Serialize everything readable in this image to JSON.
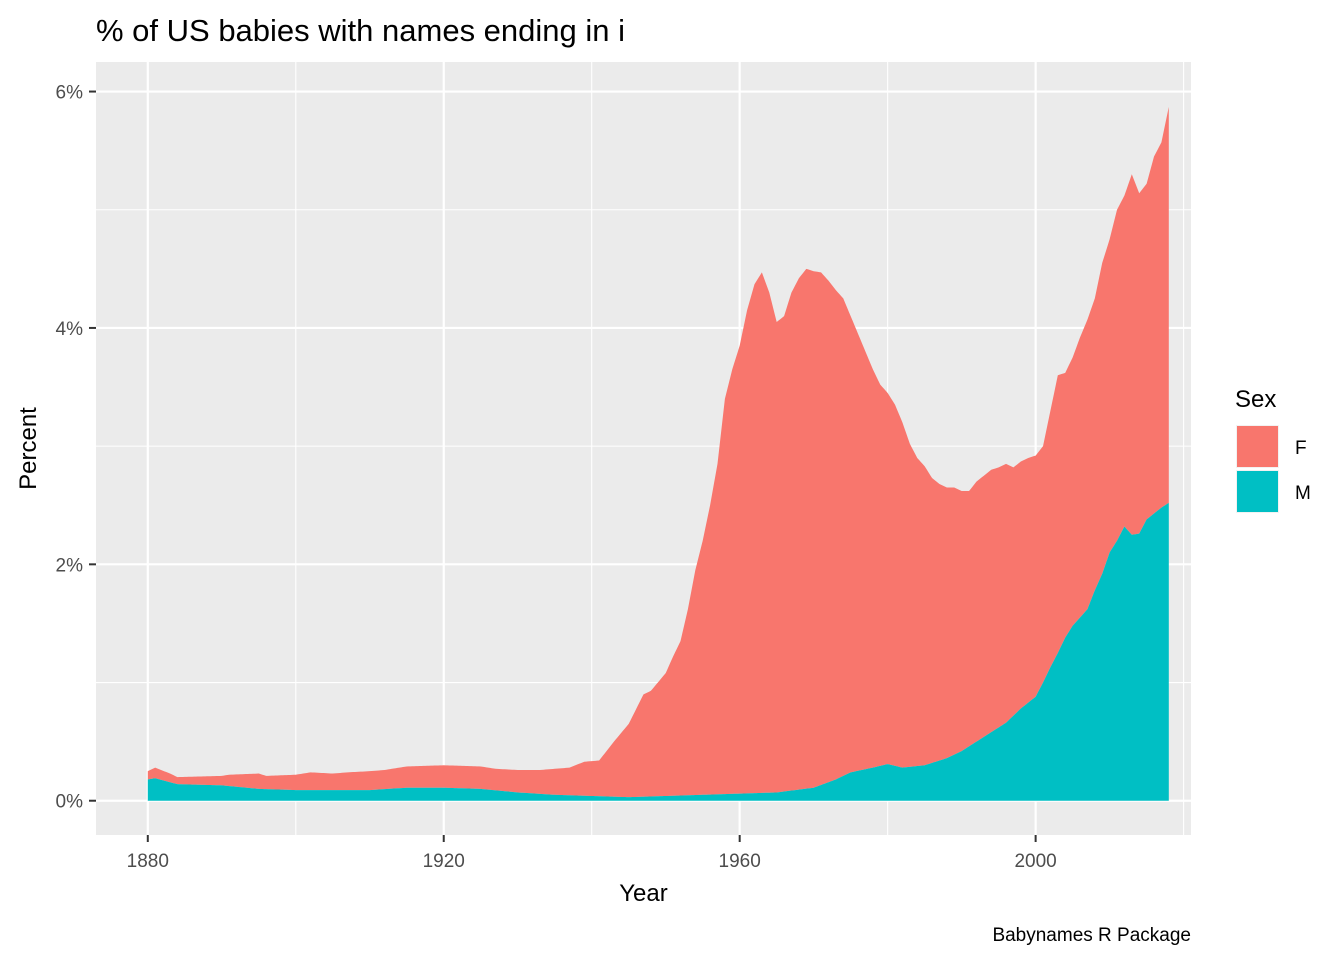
{
  "chart_data": {
    "type": "area",
    "stacked": true,
    "title": "% of US babies with names ending in i",
    "xlabel": "Year",
    "ylabel": "Percent",
    "caption": "Babynames R Package",
    "xlim": [
      1873,
      2021
    ],
    "ylim": [
      -0.0029,
      0.0625
    ],
    "x_ticks": [
      1880,
      1920,
      1960,
      2000
    ],
    "x_tick_labels": [
      "1880",
      "1920",
      "1960",
      "2000"
    ],
    "y_ticks": [
      0,
      0.02,
      0.04,
      0.06
    ],
    "y_tick_labels": [
      "0%",
      "2%",
      "4%",
      "6%"
    ],
    "grid": true,
    "legend": {
      "title": "Sex",
      "position": "right"
    },
    "series": [
      {
        "name": "F",
        "color": "#F8766D",
        "points": [
          [
            1880,
            0.0025
          ],
          [
            1881,
            0.0028
          ],
          [
            1883,
            0.0023
          ],
          [
            1884,
            0.002
          ],
          [
            1890,
            0.0021
          ],
          [
            1891,
            0.0022
          ],
          [
            1895,
            0.0023
          ],
          [
            1896,
            0.0021
          ],
          [
            1900,
            0.0022
          ],
          [
            1902,
            0.0024
          ],
          [
            1905,
            0.0023
          ],
          [
            1907,
            0.0024
          ],
          [
            1910,
            0.0025
          ],
          [
            1912,
            0.0026
          ],
          [
            1915,
            0.0029
          ],
          [
            1920,
            0.003
          ],
          [
            1925,
            0.0029
          ],
          [
            1927,
            0.0027
          ],
          [
            1930,
            0.0026
          ],
          [
            1933,
            0.0026
          ],
          [
            1935,
            0.0027
          ],
          [
            1937,
            0.0028
          ],
          [
            1939,
            0.0033
          ],
          [
            1941,
            0.0034
          ],
          [
            1943,
            0.005
          ],
          [
            1945,
            0.0065
          ],
          [
            1947,
            0.009
          ],
          [
            1948,
            0.0093
          ],
          [
            1950,
            0.0108
          ],
          [
            1951,
            0.0122
          ],
          [
            1952,
            0.0135
          ],
          [
            1953,
            0.0162
          ],
          [
            1954,
            0.0195
          ],
          [
            1955,
            0.022
          ],
          [
            1956,
            0.025
          ],
          [
            1957,
            0.0285
          ],
          [
            1958,
            0.034
          ],
          [
            1959,
            0.0365
          ],
          [
            1960,
            0.0385
          ],
          [
            1961,
            0.0415
          ],
          [
            1962,
            0.0437
          ],
          [
            1963,
            0.0447
          ],
          [
            1964,
            0.043
          ],
          [
            1965,
            0.0405
          ],
          [
            1966,
            0.041
          ],
          [
            1967,
            0.043
          ],
          [
            1968,
            0.0442
          ],
          [
            1969,
            0.045
          ],
          [
            1970,
            0.0448
          ],
          [
            1971,
            0.0447
          ],
          [
            1972,
            0.044
          ],
          [
            1973,
            0.0432
          ],
          [
            1974,
            0.0425
          ],
          [
            1975,
            0.041
          ],
          [
            1976,
            0.0395
          ],
          [
            1977,
            0.038
          ],
          [
            1978,
            0.0365
          ],
          [
            1979,
            0.0352
          ],
          [
            1980,
            0.0345
          ],
          [
            1981,
            0.0335
          ],
          [
            1982,
            0.032
          ],
          [
            1983,
            0.0302
          ],
          [
            1984,
            0.029
          ],
          [
            1985,
            0.0283
          ],
          [
            1986,
            0.0273
          ],
          [
            1987,
            0.0268
          ],
          [
            1988,
            0.0265
          ],
          [
            1989,
            0.0265
          ],
          [
            1990,
            0.0262
          ],
          [
            1991,
            0.0262
          ],
          [
            1992,
            0.027
          ],
          [
            1993,
            0.0275
          ],
          [
            1994,
            0.028
          ],
          [
            1995,
            0.0282
          ],
          [
            1996,
            0.0285
          ],
          [
            1997,
            0.0282
          ],
          [
            1998,
            0.0287
          ],
          [
            1999,
            0.029
          ],
          [
            2000,
            0.0292
          ],
          [
            2001,
            0.03
          ],
          [
            2002,
            0.033
          ],
          [
            2003,
            0.036
          ],
          [
            2004,
            0.0362
          ],
          [
            2005,
            0.0375
          ],
          [
            2006,
            0.0392
          ],
          [
            2007,
            0.0407
          ],
          [
            2008,
            0.0425
          ],
          [
            2009,
            0.0455
          ],
          [
            2010,
            0.0475
          ],
          [
            2011,
            0.05
          ],
          [
            2012,
            0.0512
          ],
          [
            2013,
            0.053
          ],
          [
            2014,
            0.0514
          ],
          [
            2015,
            0.0522
          ],
          [
            2016,
            0.0545
          ],
          [
            2017,
            0.0557
          ],
          [
            2018,
            0.0587
          ]
        ]
      },
      {
        "name": "M",
        "color": "#00BFC4",
        "points": [
          [
            1880,
            0.0018
          ],
          [
            1881,
            0.0019
          ],
          [
            1884,
            0.0014
          ],
          [
            1890,
            0.0013
          ],
          [
            1895,
            0.001
          ],
          [
            1900,
            0.0009
          ],
          [
            1905,
            0.0009
          ],
          [
            1910,
            0.0009
          ],
          [
            1915,
            0.0011
          ],
          [
            1920,
            0.0011
          ],
          [
            1925,
            0.001
          ],
          [
            1930,
            0.0007
          ],
          [
            1935,
            0.0005
          ],
          [
            1940,
            0.0004
          ],
          [
            1945,
            0.0003
          ],
          [
            1950,
            0.0004
          ],
          [
            1955,
            0.0005
          ],
          [
            1960,
            0.0006
          ],
          [
            1965,
            0.0007
          ],
          [
            1970,
            0.0011
          ],
          [
            1973,
            0.0018
          ],
          [
            1975,
            0.0024
          ],
          [
            1978,
            0.0028
          ],
          [
            1980,
            0.0031
          ],
          [
            1982,
            0.0028
          ],
          [
            1985,
            0.003
          ],
          [
            1988,
            0.0036
          ],
          [
            1990,
            0.0042
          ],
          [
            1992,
            0.005
          ],
          [
            1994,
            0.0058
          ],
          [
            1996,
            0.0066
          ],
          [
            1998,
            0.0078
          ],
          [
            2000,
            0.0088
          ],
          [
            2001,
            0.01
          ],
          [
            2002,
            0.0113
          ],
          [
            2003,
            0.0125
          ],
          [
            2004,
            0.0138
          ],
          [
            2005,
            0.0148
          ],
          [
            2006,
            0.0155
          ],
          [
            2007,
            0.0162
          ],
          [
            2008,
            0.0178
          ],
          [
            2009,
            0.0192
          ],
          [
            2010,
            0.021
          ],
          [
            2011,
            0.022
          ],
          [
            2012,
            0.0232
          ],
          [
            2013,
            0.0225
          ],
          [
            2014,
            0.0226
          ],
          [
            2015,
            0.0238
          ],
          [
            2016,
            0.0243
          ],
          [
            2017,
            0.0248
          ],
          [
            2018,
            0.0252
          ]
        ]
      }
    ]
  }
}
